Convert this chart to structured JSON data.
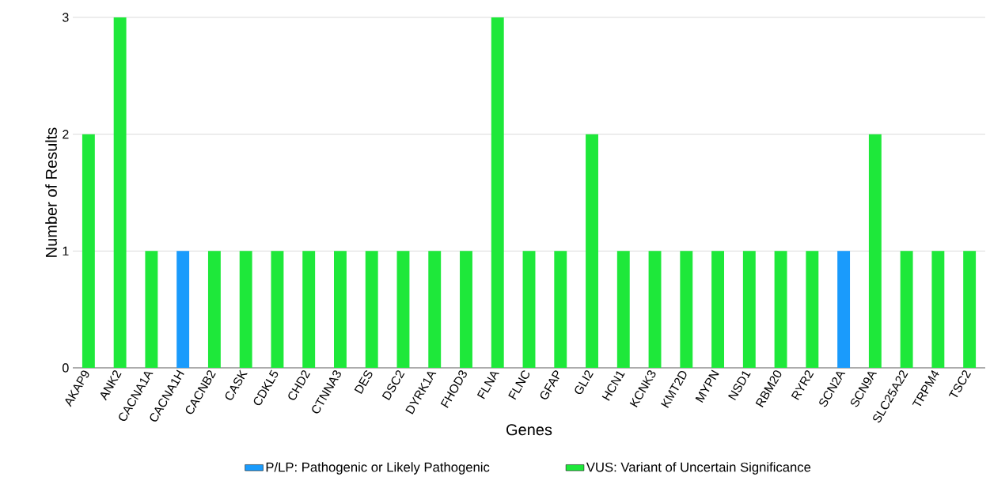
{
  "chart_data": {
    "type": "bar",
    "xlabel": "Genes",
    "ylabel": "Number of Results",
    "categories": [
      "AKAP9",
      "ANK2",
      "CACNA1A",
      "CACNA1H",
      "CACNB2",
      "CASK",
      "CDKL5",
      "CHD2",
      "CTNNA3",
      "DES",
      "DSC2",
      "DYRK1A",
      "FHOD3",
      "FLNA",
      "FLNC",
      "GFAP",
      "GLI2",
      "HCN1",
      "KCNK3",
      "KMT2D",
      "MYPN",
      "NSD1",
      "RBM20",
      "RYR2",
      "SCN2A",
      "SCN9A",
      "SLC25A22",
      "TRPM4",
      "TSC2"
    ],
    "series": [
      {
        "name": "P/LP: Pathogenic or Likely Pathogenic",
        "color": "#1a9bfc",
        "values": [
          null,
          null,
          null,
          1,
          null,
          null,
          null,
          null,
          null,
          null,
          null,
          null,
          null,
          null,
          null,
          null,
          null,
          null,
          null,
          null,
          null,
          null,
          null,
          null,
          1,
          null,
          null,
          null,
          null
        ]
      },
      {
        "name": "VUS: Variant of Uncertain Significance",
        "color": "#1ee83a",
        "values": [
          2,
          3,
          1,
          null,
          1,
          1,
          1,
          1,
          1,
          1,
          1,
          1,
          1,
          3,
          1,
          1,
          2,
          1,
          1,
          1,
          1,
          1,
          1,
          1,
          null,
          2,
          1,
          1,
          1
        ]
      }
    ],
    "stacked": true,
    "ylim": [
      0,
      3
    ],
    "yticks": [
      0,
      1,
      2,
      3
    ],
    "grid": "y",
    "legend": "bottom"
  }
}
